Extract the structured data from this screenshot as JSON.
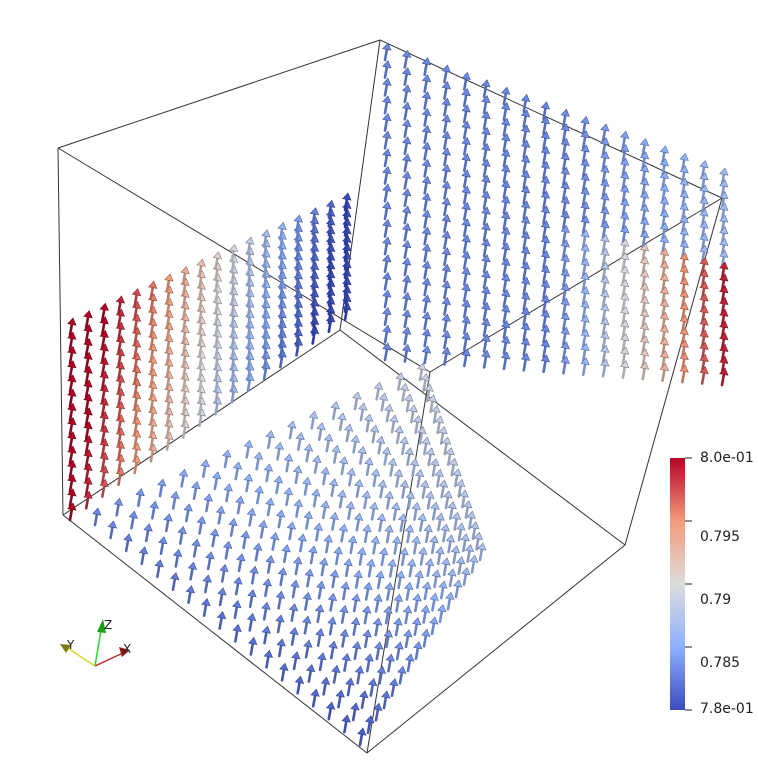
{
  "colorbar": {
    "ticks": [
      {
        "value": 0.8,
        "label": "8.0e-01"
      },
      {
        "value": 0.795,
        "label": "0.795"
      },
      {
        "value": 0.79,
        "label": "0.79"
      },
      {
        "value": 0.785,
        "label": "0.785"
      },
      {
        "value": 0.78,
        "label": "7.8e-01"
      }
    ],
    "range": [
      0.78,
      0.8
    ],
    "colors": {
      "low": "#3b4cc0",
      "mid": "#dddddd",
      "high": "#b40426"
    }
  },
  "axes": {
    "x": {
      "label": "X",
      "color": "#c0262b"
    },
    "y": {
      "label": "Y",
      "color": "#d8d82a"
    },
    "z": {
      "label": "Z",
      "color": "#29d829"
    }
  }
}
